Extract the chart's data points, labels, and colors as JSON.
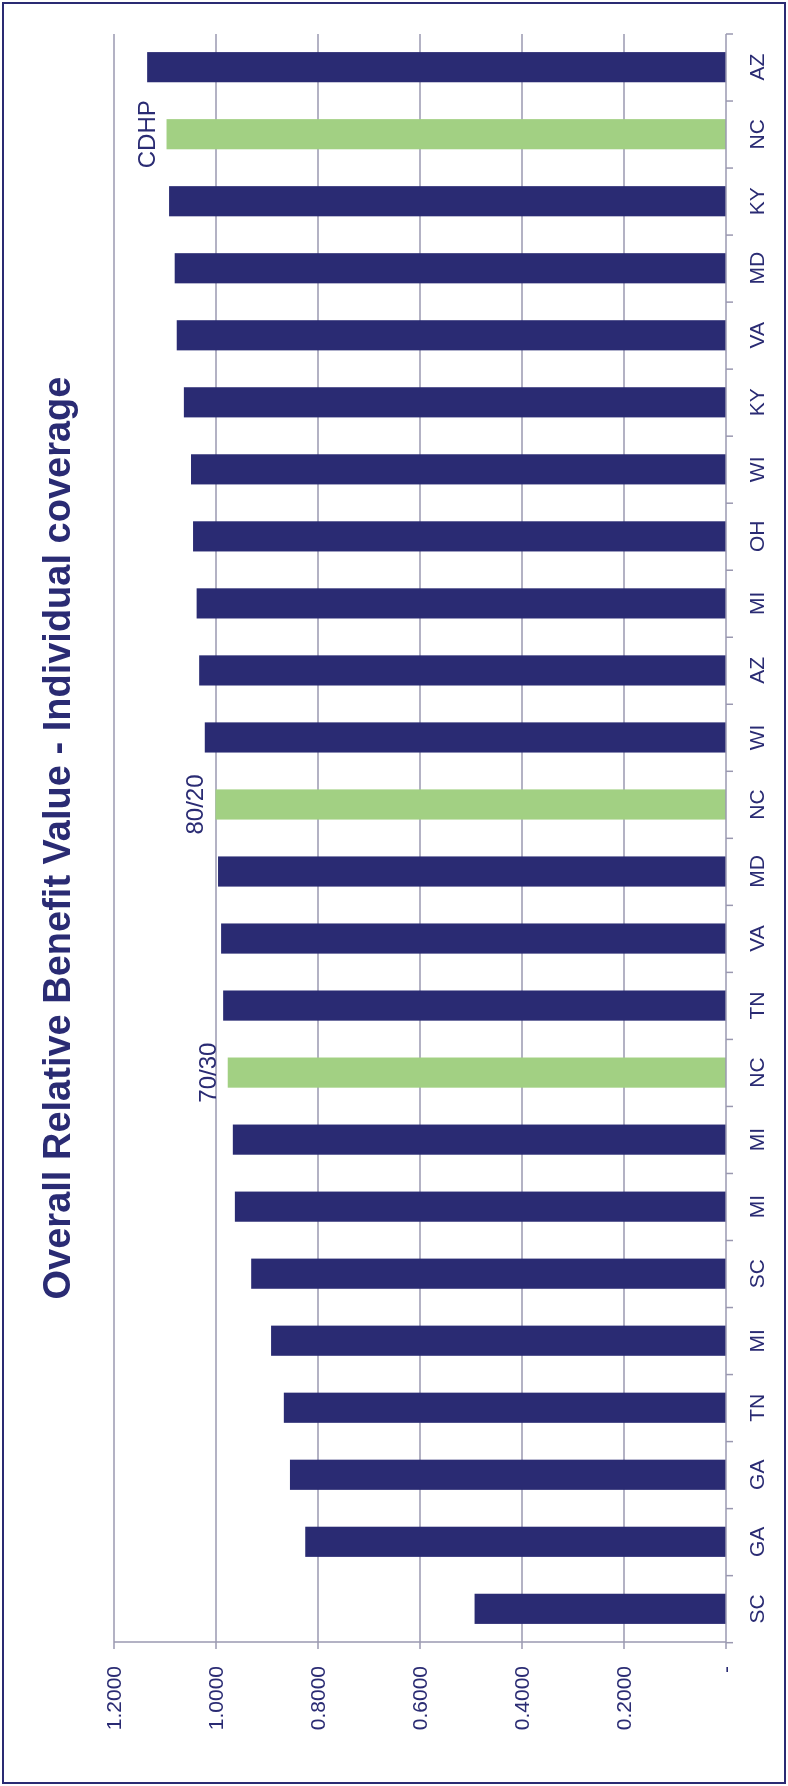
{
  "chart_data": {
    "type": "bar",
    "title": "Overall Relative Benefit Value - Individual coverage",
    "orientation": "horizontal",
    "categories": [
      "AZ",
      "NC",
      "KY",
      "MD",
      "VA",
      "KY",
      "WI",
      "OH",
      "MI",
      "AZ",
      "WI",
      "NC",
      "MD",
      "VA",
      "TN",
      "NC",
      "MI",
      "MI",
      "SC",
      "MI",
      "TN",
      "GA",
      "GA",
      "SC"
    ],
    "values": [
      1.135,
      1.097,
      1.092,
      1.081,
      1.077,
      1.063,
      1.049,
      1.045,
      1.038,
      1.033,
      1.022,
      1.001,
      0.996,
      0.99,
      0.986,
      0.977,
      0.967,
      0.963,
      0.931,
      0.892,
      0.867,
      0.855,
      0.825,
      0.493
    ],
    "colors": [
      "#2a2b73",
      "#a2d083",
      "#2a2b73",
      "#2a2b73",
      "#2a2b73",
      "#2a2b73",
      "#2a2b73",
      "#2a2b73",
      "#2a2b73",
      "#2a2b73",
      "#2a2b73",
      "#a2d083",
      "#2a2b73",
      "#2a2b73",
      "#2a2b73",
      "#a2d083",
      "#2a2b73",
      "#2a2b73",
      "#2a2b73",
      "#2a2b73",
      "#2a2b73",
      "#2a2b73",
      "#2a2b73",
      "#2a2b73"
    ],
    "xlim": [
      1.2,
      0
    ],
    "xticks": [
      {
        "value": 0,
        "label": "-"
      },
      {
        "value": 0.2,
        "label": "0.2000"
      },
      {
        "value": 0.4,
        "label": "0.4000"
      },
      {
        "value": 0.6,
        "label": "0.6000"
      },
      {
        "value": 0.8,
        "label": "0.8000"
      },
      {
        "value": 1,
        "label": "1.0000"
      },
      {
        "value": 1.2,
        "label": "1.2000"
      }
    ],
    "grid": "x",
    "annotations": [
      "CDHP",
      "80/20",
      "70/30"
    ]
  }
}
